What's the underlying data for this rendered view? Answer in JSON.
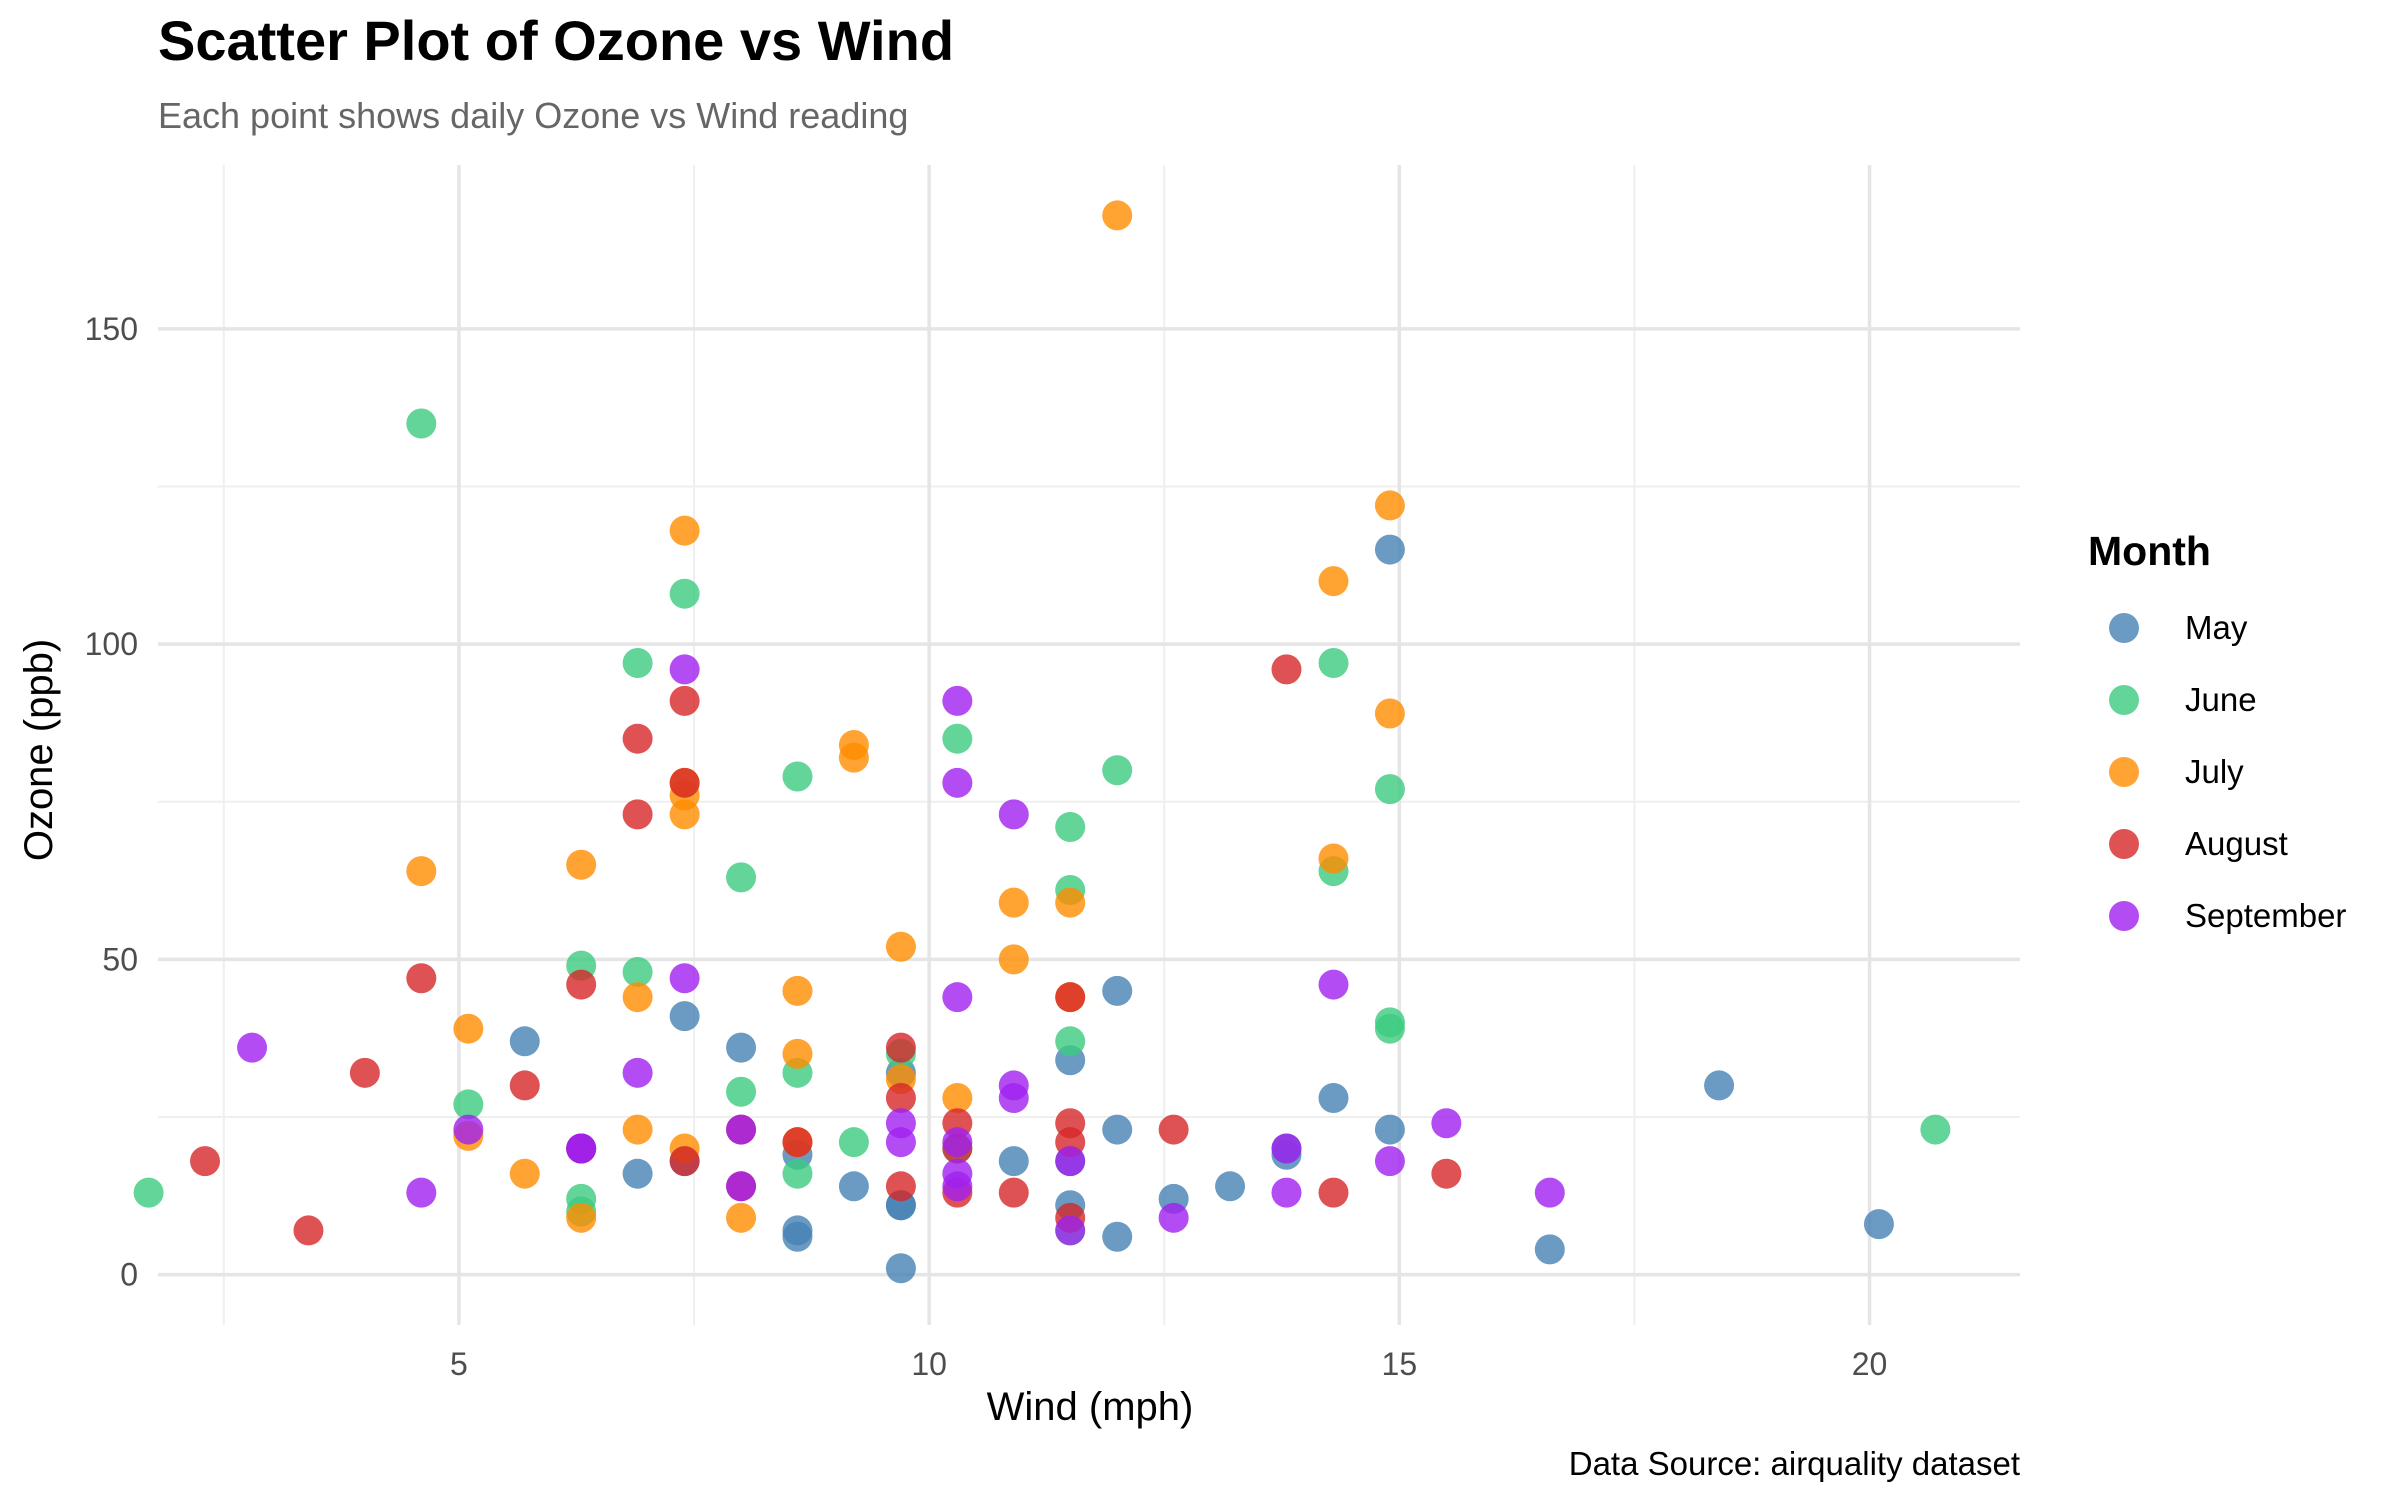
{
  "chart_data": {
    "type": "scatter",
    "title": "Scatter Plot of Ozone vs Wind",
    "subtitle": "Each point shows daily Ozone vs Wind reading",
    "xlabel": "Wind (mph)",
    "ylabel": "Ozone (ppb)",
    "caption": "Data Source: airquality dataset",
    "xlim": [
      1.8,
      21.6
    ],
    "ylim": [
      -8,
      176
    ],
    "x_ticks": [
      5,
      10,
      15,
      20
    ],
    "y_ticks": [
      0,
      50,
      100,
      150
    ],
    "grid": true,
    "legend": {
      "title": "Month",
      "position": "right"
    },
    "series": [
      {
        "name": "May",
        "color": "#4682B4",
        "points": [
          [
            7.4,
            41
          ],
          [
            8,
            36
          ],
          [
            12.6,
            12
          ],
          [
            11.5,
            18
          ],
          [
            14.3,
            28
          ],
          [
            14.9,
            23
          ],
          [
            8.6,
            19
          ],
          [
            13.8,
            19
          ],
          [
            20.1,
            8
          ],
          [
            8.6,
            7
          ],
          [
            6.9,
            16
          ],
          [
            9.7,
            11
          ],
          [
            9.2,
            14
          ],
          [
            10.9,
            18
          ],
          [
            13.2,
            14
          ],
          [
            11.5,
            34
          ],
          [
            12,
            6
          ],
          [
            18.4,
            30
          ],
          [
            11.5,
            11
          ],
          [
            9.7,
            1
          ],
          [
            9.7,
            11
          ],
          [
            16.6,
            4
          ],
          [
            9.7,
            32
          ],
          [
            12,
            23
          ],
          [
            12,
            45
          ],
          [
            14.9,
            115
          ],
          [
            5.7,
            37
          ],
          [
            7.4,
            18
          ],
          [
            8.6,
            6
          ],
          [
            13.8,
            20
          ]
        ]
      },
      {
        "name": "June",
        "color": "#3CCB7F",
        "points": [
          [
            8,
            29
          ],
          [
            11.5,
            71
          ],
          [
            14.9,
            39
          ],
          [
            20.7,
            23
          ],
          [
            9.2,
            21
          ],
          [
            11.5,
            37
          ],
          [
            10.3,
            20
          ],
          [
            6.3,
            12
          ],
          [
            1.7,
            13
          ],
          [
            4.6,
            135
          ],
          [
            6.3,
            49
          ],
          [
            8.6,
            32
          ],
          [
            14.3,
            64
          ],
          [
            14.9,
            40
          ],
          [
            14.9,
            77
          ],
          [
            14.3,
            97
          ],
          [
            6.9,
            97
          ],
          [
            10.3,
            85
          ],
          [
            6.3,
            10
          ],
          [
            5.1,
            27
          ],
          [
            11.5,
            7
          ],
          [
            6.9,
            48
          ],
          [
            9.7,
            35
          ],
          [
            11.5,
            61
          ],
          [
            8.6,
            79
          ],
          [
            8,
            63
          ],
          [
            8.6,
            16
          ],
          [
            12,
            80
          ],
          [
            7.4,
            108
          ]
        ]
      },
      {
        "name": "July",
        "color": "#FF8C00",
        "points": [
          [
            7.4,
            20
          ],
          [
            9.7,
            52
          ],
          [
            9.2,
            82
          ],
          [
            10.9,
            50
          ],
          [
            4.6,
            64
          ],
          [
            10.9,
            59
          ],
          [
            5.1,
            39
          ],
          [
            6.3,
            9
          ],
          [
            5.7,
            16
          ],
          [
            7.4,
            78
          ],
          [
            8.6,
            35
          ],
          [
            14.3,
            66
          ],
          [
            14.9,
            122
          ],
          [
            14.9,
            89
          ],
          [
            14.3,
            110
          ],
          [
            6.9,
            44
          ],
          [
            10.3,
            28
          ],
          [
            6.3,
            65
          ],
          [
            5.1,
            22
          ],
          [
            11.5,
            59
          ],
          [
            6.9,
            23
          ],
          [
            9.7,
            31
          ],
          [
            11.5,
            44
          ],
          [
            8.6,
            21
          ],
          [
            8,
            9
          ],
          [
            8.6,
            45
          ],
          [
            12,
            168
          ],
          [
            7.4,
            73
          ],
          [
            7.4,
            76
          ],
          [
            7.4,
            118
          ],
          [
            9.2,
            84
          ]
        ]
      },
      {
        "name": "August",
        "color": "#D62728",
        "points": [
          [
            6.9,
            85
          ],
          [
            13.8,
            96
          ],
          [
            7.4,
            78
          ],
          [
            6.9,
            73
          ],
          [
            7.4,
            91
          ],
          [
            4.6,
            47
          ],
          [
            4,
            32
          ],
          [
            10.3,
            20
          ],
          [
            8,
            23
          ],
          [
            8.6,
            21
          ],
          [
            11.5,
            24
          ],
          [
            11.5,
            44
          ],
          [
            11.5,
            21
          ],
          [
            9.7,
            28
          ],
          [
            11.5,
            9
          ],
          [
            10.3,
            13
          ],
          [
            6.3,
            46
          ],
          [
            7.4,
            18
          ],
          [
            10.9,
            13
          ],
          [
            10.3,
            24
          ],
          [
            15.5,
            16
          ],
          [
            14.3,
            13
          ],
          [
            12.6,
            23
          ],
          [
            9.7,
            36
          ],
          [
            3.4,
            7
          ],
          [
            8,
            14
          ],
          [
            5.7,
            30
          ],
          [
            9.7,
            14
          ],
          [
            2.3,
            18
          ],
          [
            6.3,
            20
          ],
          [
            6.3,
            20
          ]
        ]
      },
      {
        "name": "September",
        "color": "#A020F0",
        "points": [
          [
            7.4,
            96
          ],
          [
            10.3,
            78
          ],
          [
            10.9,
            73
          ],
          [
            10.3,
            91
          ],
          [
            7.4,
            47
          ],
          [
            6.9,
            32
          ],
          [
            6.3,
            20
          ],
          [
            8,
            23
          ],
          [
            9.7,
            21
          ],
          [
            9.7,
            24
          ],
          [
            10.3,
            44
          ],
          [
            10.3,
            21
          ],
          [
            10.9,
            28
          ],
          [
            12.6,
            9
          ],
          [
            13.8,
            13
          ],
          [
            14.3,
            46
          ],
          [
            14.9,
            18
          ],
          [
            16.6,
            13
          ],
          [
            15.5,
            24
          ],
          [
            10.3,
            16
          ],
          [
            4.6,
            13
          ],
          [
            5.1,
            23
          ],
          [
            2.8,
            36
          ],
          [
            11.5,
            7
          ],
          [
            8,
            14
          ],
          [
            10.9,
            30
          ],
          [
            10.3,
            14
          ],
          [
            11.5,
            18
          ],
          [
            13.8,
            20
          ],
          [
            6.3,
            20
          ]
        ]
      }
    ]
  }
}
